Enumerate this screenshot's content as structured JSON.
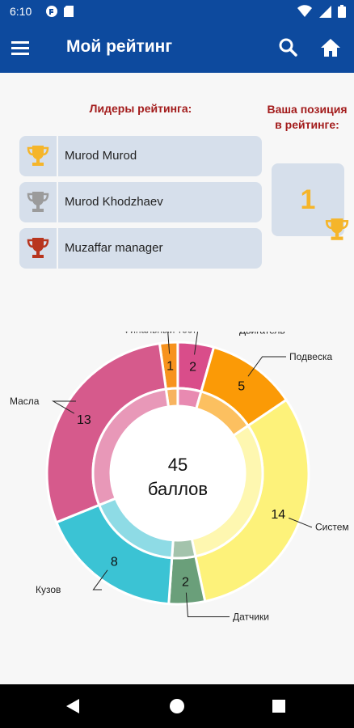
{
  "status_bar": {
    "time": "6:10"
  },
  "app_bar": {
    "title": "Мой рейтинг"
  },
  "leaders": {
    "title": "Лидеры рейтинга:",
    "items": [
      {
        "name": "Murod Murod",
        "trophy_color": "#f5b52a"
      },
      {
        "name": "Murod Khodzhaev",
        "trophy_color": "#9b9b9b"
      },
      {
        "name": "Muzaffar manager",
        "trophy_color": "#b8351e"
      }
    ]
  },
  "position": {
    "title_line1": "Ваша позиция",
    "title_line2": "в рейтинге:",
    "value": "1",
    "trophy_color": "#f5b52a"
  },
  "chart_data": {
    "type": "pie",
    "center_value": "45",
    "center_unit": "баллов",
    "slices": [
      {
        "label": "Финальный тест",
        "value": 1,
        "color": "#f7931e",
        "inner_color": "#f7b35f"
      },
      {
        "label": "Двигатель",
        "value": 2,
        "color": "#d94d8a",
        "inner_color": "#e88ab1"
      },
      {
        "label": "Подвеска",
        "value": 5,
        "color": "#fb9a06",
        "inner_color": "#fcc060"
      },
      {
        "label": "Систем",
        "value": 14,
        "color": "#fdf27a",
        "inner_color": "#fef7b0"
      },
      {
        "label": "Датчики",
        "value": 2,
        "color": "#6a9f7a",
        "inner_color": "#a3c3ac"
      },
      {
        "label": "Кузов",
        "value": 8,
        "color": "#3bc3d4",
        "inner_color": "#8edbe5"
      },
      {
        "label": "Масла",
        "value": 13,
        "color": "#d65a8c",
        "inner_color": "#e898b8"
      }
    ]
  }
}
